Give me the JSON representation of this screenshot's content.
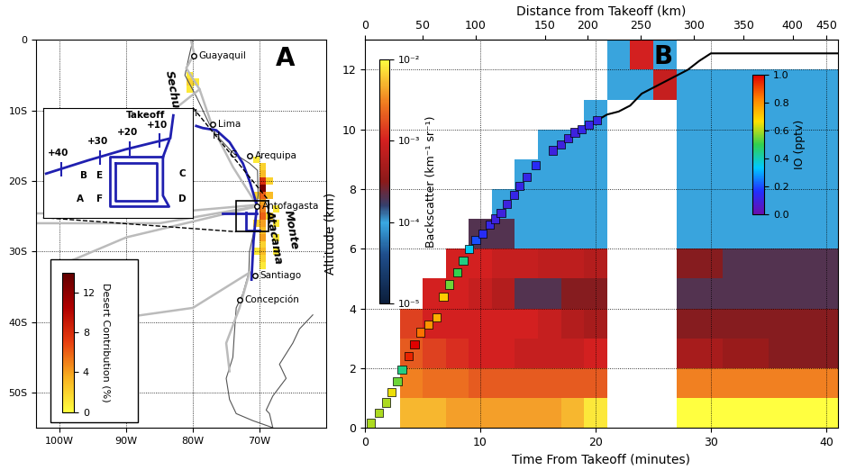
{
  "chart_data": [
    {
      "type": "map",
      "panel_label": "A",
      "xlim": [
        -103.5,
        -60
      ],
      "ylim": [
        -55,
        0
      ],
      "xticks": [
        {
          "value": -100,
          "label": "100W"
        },
        {
          "value": -90,
          "label": "90W"
        },
        {
          "value": -80,
          "label": "80W"
        },
        {
          "value": -70,
          "label": "70W"
        }
      ],
      "yticks": [
        0,
        {
          "value": -10,
          "label": "10S"
        },
        {
          "value": -20,
          "label": "20S"
        },
        {
          "value": -30,
          "label": "30S"
        },
        {
          "value": -40,
          "label": "40S"
        },
        {
          "value": -50,
          "label": "50S"
        }
      ],
      "grid": true,
      "coastline": {
        "lon": [
          -80,
          -80.5,
          -81.2,
          -79.5,
          -77.5,
          -76,
          -74,
          -71.5,
          -70.3,
          -70.2,
          -70.5,
          -70.8,
          -71.5,
          -71.6,
          -72.5,
          -73.5,
          -73.8,
          -74,
          -75,
          -74.5,
          -73.5,
          -71,
          -68,
          -68.5,
          -69,
          -68,
          -66,
          -67,
          -65,
          -64,
          -62
        ],
        "lat": [
          0,
          -2,
          -5,
          -8,
          -12,
          -14,
          -16,
          -17.5,
          -18.5,
          -22,
          -24,
          -27,
          -30,
          -33,
          -36,
          -38,
          -42,
          -45,
          -48,
          -51,
          -53,
          -54,
          -55,
          -53,
          -52.5,
          -50.5,
          -48,
          -46,
          -43,
          -41,
          -39
        ]
      },
      "grey_tracks": [
        {
          "lon": [
            -70.4,
            -85,
            -104
          ],
          "lat": [
            -23.4,
            -24.6,
            -24.6
          ]
        },
        {
          "lon": [
            -104,
            -85,
            -70.4
          ],
          "lat": [
            -26,
            -26,
            -23.6
          ]
        },
        {
          "lon": [
            -70.4,
            -90,
            -100,
            -95,
            -80,
            -71.5
          ],
          "lat": [
            -23.6,
            -28,
            -32,
            -40,
            -38,
            -33
          ]
        },
        {
          "lon": [
            -70.4,
            -74,
            -77,
            -79,
            -81,
            -79.8,
            -80.3
          ],
          "lat": [
            -23.4,
            -18,
            -12.5,
            -7,
            -4,
            -2,
            0
          ]
        },
        {
          "lon": [
            -71.5,
            -73,
            -75,
            -74.5
          ],
          "lat": [
            -33,
            -38,
            -43,
            -47
          ]
        },
        {
          "lon": [
            -79,
            -83,
            -85,
            -81
          ],
          "lat": [
            -7,
            -10,
            -20,
            -22
          ]
        }
      ],
      "blue_tracks": [
        {
          "lon": [
            -70.4,
            -71.5,
            -72.5,
            -74.5,
            -76.5,
            -78.5,
            -79.5
          ],
          "lat": [
            -23.4,
            -20,
            -17.5,
            -14.5,
            -12.8,
            -12.5,
            -12.2
          ]
        },
        {
          "lon": [
            -70.4,
            -70.9,
            -71.2
          ],
          "lat": [
            -23.6,
            -28.5,
            -34
          ]
        },
        {
          "lon": [
            -70.4,
            -75.5
          ],
          "lat": [
            -24.6,
            -24.6
          ]
        },
        {
          "lon": [
            -72,
            -72,
            -70
          ],
          "lat": [
            -24.5,
            -27,
            -27
          ]
        }
      ],
      "box": {
        "lon": [
          -73.5,
          -68.6
        ],
        "lat": [
          -27.2,
          -22.8
        ]
      },
      "cities": [
        {
          "text": "Guayaquil",
          "lon": -79.9,
          "lat": -2.2
        },
        {
          "text": "Lima",
          "lon": -77.0,
          "lat": -12.0
        },
        {
          "text": "Arequipa",
          "lon": -71.5,
          "lat": -16.4
        },
        {
          "text": "Antofagasta",
          "lon": -70.4,
          "lat": -23.6
        },
        {
          "text": "Santiago",
          "lon": -70.7,
          "lat": -33.4
        },
        {
          "text": "Concepción",
          "lon": -73.0,
          "lat": -36.8
        }
      ],
      "region_labels": [
        {
          "text": "Sechura",
          "lon": -83,
          "lat": -8
        },
        {
          "text": "Atacama",
          "lon": -67.8,
          "lat": -28
        },
        {
          "text": "Monte",
          "lon": -65.3,
          "lat": -27
        }
      ],
      "point_labels": [
        {
          "text": "G",
          "lon": -74.0,
          "lat": -17.0
        },
        {
          "text": "H",
          "lon": -76.5,
          "lat": -14.2
        },
        {
          "text": "I",
          "lon": -79.5,
          "lat": -11.0
        }
      ],
      "desert_cells": {
        "lon": [
          -80.5,
          -80.5,
          -79.5,
          -80.5,
          -70.5,
          -69.5,
          -69.5,
          -69.5,
          -69.5,
          -69.5,
          -69.5,
          -69.5,
          -69.5,
          -69.5,
          -69.5,
          -69.5,
          -69.5,
          -69.5,
          -69.5,
          -68.5,
          -68.5,
          -68.5,
          -67.5,
          -67.5,
          -67.5,
          -67.5,
          -70.5,
          -70.5,
          -70.5,
          -69.5
        ],
        "lat": [
          -5,
          -6,
          -6,
          -7,
          -17,
          -18,
          -19,
          -20,
          -21,
          -22,
          -23,
          -24,
          -25,
          -26,
          -27,
          -28,
          -29,
          -30,
          -31,
          -20,
          -22,
          -25,
          -24,
          -26,
          -28,
          -30,
          -22,
          -26,
          -30,
          -32
        ],
        "values": [
          1,
          2,
          1,
          1,
          1,
          2,
          3,
          8,
          13,
          6,
          4,
          5,
          6,
          4,
          3,
          4,
          2,
          3,
          2,
          2,
          3,
          2,
          1,
          1,
          1,
          1,
          2,
          2,
          1,
          1
        ]
      },
      "colorbar": {
        "label": "Desert Contribution (%)",
        "lim": [
          0,
          14
        ],
        "ticks": [
          0,
          4,
          8,
          12
        ]
      },
      "inset": {
        "tracks": [
          {
            "lon": [
              -69.24,
              -69.34,
              -70.8,
              -72.03,
              -73.4
            ],
            "lat": [
              -23.11,
              -24.03,
              -24.47,
              -24.91,
              -25.44
            ]
          },
          {
            "lon": [
              -69.38,
              -69.58,
              -69.58,
              -69.38,
              -71.3,
              -71.3,
              -69.58
            ],
            "lat": [
              -24.12,
              -24.78,
              -26.32,
              -26.76,
              -26.76,
              -24.78,
              -24.78
            ]
          },
          {
            "lon": [
              -71.15,
              -71.15,
              -69.78,
              -69.78,
              -71.15
            ],
            "lat": [
              -25.0,
              -26.54,
              -26.54,
              -25.0,
              -25.0
            ]
          }
        ],
        "time_marks": {
          "lon": [
            -69.68,
            -70.66,
            -71.64,
            -72.91
          ],
          "lat": [
            -24.12,
            -24.43,
            -24.78,
            -25.26
          ],
          "labels": [
            "+10",
            "+20",
            "+30",
            "+40"
          ]
        },
        "takeoff": {
          "text": "Takeoff",
          "lon": -69.5,
          "lat": -23.11
        },
        "labels": [
          {
            "text": "A",
            "lon": -72.28,
            "lat": -26.45
          },
          {
            "text": "B",
            "lon": -72.18,
            "lat": -25.53
          },
          {
            "text": "C",
            "lon": -68.94,
            "lat": -25.44
          },
          {
            "text": "D",
            "lon": -68.94,
            "lat": -26.45
          },
          {
            "text": "E",
            "lon": -71.64,
            "lat": -25.53
          },
          {
            "text": "F",
            "lon": -71.64,
            "lat": -26.45
          }
        ]
      }
    },
    {
      "type": "curtain",
      "panel_label": "B",
      "x_label": "Time From Takeoff (minutes)",
      "y_label": "Altitude (km)",
      "x2_label": "Distance from Takeoff (km)",
      "xlim": [
        0,
        41
      ],
      "ylim": [
        0,
        13
      ],
      "xticks": [
        0,
        10,
        20,
        30,
        40
      ],
      "yticks": [
        0,
        2,
        4,
        6,
        8,
        10,
        12
      ],
      "x2ticks": [
        0,
        50,
        100,
        150,
        200,
        250,
        300,
        350,
        400,
        450
      ],
      "distance_scale": {
        "time": [
          0,
          5.0,
          9.6,
          15.6,
          19.3,
          23.9,
          28.5,
          32.8,
          37.1,
          40.0,
          41
        ],
        "distance": [
          0,
          50,
          100,
          150,
          200,
          250,
          300,
          350,
          400,
          450,
          465
        ]
      },
      "grid": true,
      "backscatter": {
        "label": "Backscatter (km⁻¹ sr⁻¹)",
        "log": true,
        "lim": [
          1e-05,
          0.01
        ],
        "ticks": [
          {
            "value": 1e-05,
            "label": "10⁻⁵"
          },
          {
            "value": 0.0001,
            "label": "10⁻⁴"
          },
          {
            "value": 0.001,
            "label": "10⁻³"
          },
          {
            "value": 0.01,
            "label": "10⁻²"
          }
        ],
        "time_edges": [
          3,
          5,
          7,
          9,
          11,
          13,
          15,
          17,
          19,
          21,
          23,
          25,
          27,
          29,
          31,
          33,
          35,
          37,
          39,
          41
        ],
        "altitude_edges": [
          0,
          1,
          2,
          3,
          4,
          5,
          6,
          7,
          8,
          9,
          10,
          11,
          12,
          13
        ],
        "cells": [
          [
            0.005,
            0.005,
            0.004,
            0.004,
            0.004,
            0.004,
            0.004,
            0.005,
            0.008,
            null,
            null,
            null,
            0.01,
            0.01,
            0.01,
            0.01,
            0.01,
            0.01,
            0.01
          ],
          [
            0.003,
            0.0025,
            0.0025,
            0.002,
            0.002,
            0.002,
            0.002,
            0.002,
            0.002,
            null,
            null,
            null,
            0.003,
            0.003,
            0.003,
            0.003,
            0.003,
            0.003,
            0.003
          ],
          [
            0.002,
            0.0015,
            0.0012,
            0.001,
            0.001,
            0.0008,
            0.0008,
            0.0008,
            0.001,
            null,
            null,
            null,
            0.0005,
            0.0005,
            0.0004,
            0.0004,
            0.0003,
            0.0003,
            0.0003
          ],
          [
            0.0015,
            0.001,
            0.001,
            0.001,
            0.001,
            0.001,
            0.0008,
            0.0006,
            0.0005,
            null,
            null,
            null,
            0.0003,
            0.0003,
            0.0003,
            0.0003,
            0.0003,
            0.0003,
            0.0003
          ],
          [
            null,
            0.001,
            0.001,
            0.0008,
            0.0006,
            0.0002,
            0.0002,
            0.0003,
            0.0003,
            null,
            null,
            null,
            0.0002,
            0.0002,
            0.0002,
            0.0002,
            0.0002,
            0.0002,
            0.0002
          ],
          [
            null,
            null,
            0.001,
            0.001,
            0.0008,
            0.0008,
            0.0007,
            0.0007,
            0.0006,
            null,
            null,
            null,
            0.0003,
            0.0003,
            0.0002,
            0.0002,
            0.0002,
            0.0002,
            0.0002
          ],
          [
            null,
            null,
            null,
            0.0002,
            0.0002,
            0.0001,
            0.0001,
            0.0001,
            0.0001,
            null,
            null,
            null,
            0.0001,
            0.0001,
            0.0001,
            0.0001,
            0.0001,
            0.0001,
            0.0001
          ],
          [
            null,
            null,
            null,
            null,
            0.0001,
            0.0001,
            0.0001,
            0.0001,
            0.0001,
            null,
            null,
            null,
            0.0001,
            0.0001,
            0.0001,
            0.0001,
            0.0001,
            0.0001,
            0.0001
          ],
          [
            null,
            null,
            null,
            null,
            null,
            0.0001,
            0.0001,
            0.0001,
            0.0001,
            null,
            null,
            null,
            0.0001,
            0.0001,
            0.0001,
            0.0001,
            0.0001,
            0.0001,
            0.0001
          ],
          [
            null,
            null,
            null,
            null,
            null,
            null,
            0.0001,
            0.0001,
            0.0001,
            null,
            null,
            null,
            0.0001,
            0.0001,
            0.0001,
            0.0001,
            0.0001,
            0.0001,
            0.0001
          ],
          [
            null,
            null,
            null,
            null,
            null,
            null,
            null,
            null,
            0.0001,
            null,
            null,
            null,
            0.0001,
            0.0001,
            0.0001,
            0.0001,
            0.0001,
            0.0001,
            0.0001
          ],
          [
            null,
            null,
            null,
            null,
            null,
            null,
            null,
            null,
            null,
            0.0001,
            0.0001,
            0.0008,
            0.0001,
            0.0001,
            0.0001,
            0.0001,
            0.0001,
            0.0001,
            0.0001
          ],
          [
            null,
            null,
            null,
            null,
            null,
            null,
            null,
            null,
            null,
            0.0001,
            0.001,
            0.0001,
            null,
            null,
            null,
            null,
            null,
            null,
            null
          ]
        ]
      },
      "io": {
        "label": "IO (pptv)",
        "lim": [
          0.0,
          1.0
        ],
        "ticks": [
          0.0,
          0.2,
          0.4,
          0.6,
          0.8,
          1.0
        ],
        "time": [
          0.5,
          1.2,
          1.8,
          2.3,
          2.8,
          3.2,
          3.8,
          4.3,
          4.8,
          5.5,
          6.2,
          6.8,
          7.3,
          8.0,
          8.5,
          9.0,
          9.6,
          10.2,
          10.8,
          11.3,
          11.8,
          12.3,
          12.9,
          13.4,
          14.0,
          14.8,
          16.3,
          17.0,
          17.6,
          18.2,
          18.8,
          19.4,
          20.1
        ],
        "altitude": [
          0.15,
          0.5,
          0.85,
          1.2,
          1.55,
          1.95,
          2.4,
          2.8,
          3.2,
          3.45,
          3.7,
          4.4,
          4.8,
          5.2,
          5.6,
          6.0,
          6.3,
          6.5,
          6.8,
          7.0,
          7.2,
          7.5,
          7.8,
          8.1,
          8.4,
          8.8,
          9.3,
          9.5,
          9.7,
          9.9,
          10.0,
          10.15,
          10.3
        ],
        "values": [
          0.6,
          0.6,
          0.6,
          0.65,
          0.55,
          0.45,
          0.95,
          1.0,
          0.85,
          0.8,
          0.75,
          0.7,
          0.55,
          0.5,
          0.45,
          0.35,
          0.2,
          0.15,
          0.12,
          0.1,
          0.1,
          0.1,
          0.12,
          0.12,
          0.12,
          0.15,
          0.1,
          0.1,
          0.1,
          0.1,
          0.12,
          0.12,
          0.12
        ]
      },
      "flight_track": {
        "time": [
          20.1,
          21,
          22,
          23,
          24,
          25,
          26,
          27,
          28,
          29,
          30,
          41
        ],
        "altitude": [
          10.3,
          10.5,
          10.6,
          10.8,
          11.2,
          11.4,
          11.6,
          11.8,
          12.0,
          12.3,
          12.55,
          12.55
        ]
      }
    }
  ]
}
